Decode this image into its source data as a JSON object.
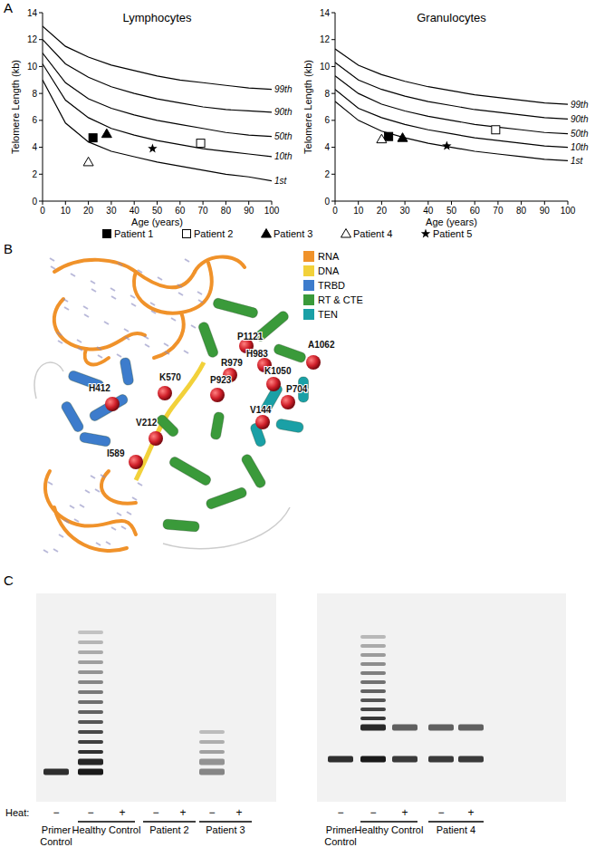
{
  "panel_labels": [
    "A",
    "B",
    "C"
  ],
  "chart_data": [
    {
      "type": "line",
      "title": "Lymphocytes",
      "x_label": "Age (years)",
      "y_label": "Telomere Length (kb)",
      "xlim": [
        0,
        100
      ],
      "ylim": [
        0,
        14
      ],
      "xticks": [
        0,
        10,
        20,
        30,
        40,
        50,
        60,
        70,
        80,
        90,
        100
      ],
      "yticks": [
        0,
        2,
        4,
        6,
        8,
        10,
        12,
        14
      ],
      "x": [
        0,
        10,
        20,
        30,
        40,
        50,
        60,
        70,
        80,
        90,
        100
      ],
      "series": [
        {
          "type": "line",
          "name": "99th",
          "color": "#000000",
          "values": [
            13.0,
            11.5,
            10.7,
            10.1,
            9.7,
            9.3,
            9.0,
            8.8,
            8.6,
            8.4,
            8.3
          ]
        },
        {
          "type": "line",
          "name": "90th",
          "color": "#000000",
          "values": [
            12.0,
            10.2,
            9.2,
            8.5,
            8.0,
            7.6,
            7.3,
            7.0,
            6.8,
            6.7,
            6.6
          ]
        },
        {
          "type": "line",
          "name": "50th",
          "color": "#000000",
          "values": [
            11.0,
            8.8,
            7.6,
            6.9,
            6.4,
            6.0,
            5.7,
            5.4,
            5.1,
            4.9,
            4.8
          ]
        },
        {
          "type": "line",
          "name": "10th",
          "color": "#000000",
          "values": [
            10.2,
            7.5,
            6.2,
            5.4,
            4.9,
            4.5,
            4.2,
            3.9,
            3.7,
            3.5,
            3.3
          ]
        },
        {
          "type": "line",
          "name": "1st",
          "color": "#000000",
          "values": [
            9.0,
            5.8,
            4.4,
            3.7,
            3.3,
            2.9,
            2.6,
            2.3,
            2.0,
            1.8,
            1.5
          ]
        },
        {
          "type": "scatter",
          "marker": "square",
          "color": "#000000",
          "x": [
            22
          ],
          "values": [
            4.7
          ]
        },
        {
          "type": "scatter",
          "marker": "square-open",
          "color": "#000000",
          "x": [
            69
          ],
          "values": [
            4.3
          ]
        },
        {
          "type": "scatter",
          "marker": "triangle",
          "color": "#000000",
          "x": [
            28
          ],
          "values": [
            5.0
          ]
        },
        {
          "type": "scatter",
          "marker": "triangle-open",
          "color": "#000000",
          "x": [
            20
          ],
          "values": [
            2.9
          ]
        },
        {
          "type": "scatter",
          "marker": "star",
          "color": "#000000",
          "x": [
            48
          ],
          "values": [
            3.9
          ]
        }
      ]
    },
    {
      "type": "line",
      "title": "Granulocytes",
      "x_label": "Age (years)",
      "y_label": "Telomere Length (kb)",
      "xlim": [
        0,
        100
      ],
      "ylim": [
        0,
        14
      ],
      "xticks": [
        0,
        10,
        20,
        30,
        40,
        50,
        60,
        70,
        80,
        90,
        100
      ],
      "yticks": [
        0,
        2,
        4,
        6,
        8,
        10,
        12,
        14
      ],
      "x": [
        0,
        10,
        20,
        30,
        40,
        50,
        60,
        70,
        80,
        90,
        100
      ],
      "series": [
        {
          "type": "line",
          "name": "99th",
          "color": "#000000",
          "values": [
            11.3,
            10.1,
            9.4,
            8.9,
            8.5,
            8.2,
            7.9,
            7.7,
            7.5,
            7.3,
            7.2
          ]
        },
        {
          "type": "line",
          "name": "90th",
          "color": "#000000",
          "values": [
            10.3,
            9.0,
            8.3,
            7.8,
            7.4,
            7.1,
            6.8,
            6.6,
            6.4,
            6.2,
            6.1
          ]
        },
        {
          "type": "line",
          "name": "50th",
          "color": "#000000",
          "values": [
            9.3,
            8.0,
            7.2,
            6.7,
            6.3,
            6.0,
            5.7,
            5.5,
            5.3,
            5.1,
            5.0
          ]
        },
        {
          "type": "line",
          "name": "10th",
          "color": "#000000",
          "values": [
            8.3,
            6.9,
            6.2,
            5.7,
            5.3,
            5.0,
            4.7,
            4.5,
            4.3,
            4.1,
            4.0
          ]
        },
        {
          "type": "line",
          "name": "1st",
          "color": "#000000",
          "values": [
            7.4,
            6.0,
            5.2,
            4.7,
            4.3,
            4.0,
            3.7,
            3.5,
            3.3,
            3.1,
            3.0
          ]
        },
        {
          "type": "scatter",
          "marker": "square",
          "color": "#000000",
          "x": [
            23
          ],
          "values": [
            4.8
          ]
        },
        {
          "type": "scatter",
          "marker": "square-open",
          "color": "#000000",
          "x": [
            69
          ],
          "values": [
            5.3
          ]
        },
        {
          "type": "scatter",
          "marker": "triangle",
          "color": "#000000",
          "x": [
            29
          ],
          "values": [
            4.7
          ]
        },
        {
          "type": "scatter",
          "marker": "triangle-open",
          "color": "#000000",
          "x": [
            20
          ],
          "values": [
            4.6
          ]
        },
        {
          "type": "scatter",
          "marker": "star",
          "color": "#000000",
          "x": [
            48
          ],
          "values": [
            4.1
          ]
        }
      ]
    }
  ],
  "key": [
    {
      "label": "Patient 1",
      "marker": "square"
    },
    {
      "label": "Patient 2",
      "marker": "square-open"
    },
    {
      "label": "Patient 3",
      "marker": "triangle"
    },
    {
      "label": "Patient 4",
      "marker": "triangle-open"
    },
    {
      "label": "Patient 5",
      "marker": "star"
    }
  ],
  "structure": {
    "legend": [
      {
        "label": "RNA",
        "color": "#f0922a"
      },
      {
        "label": "DNA",
        "color": "#f2d13a"
      },
      {
        "label": "TRBD",
        "color": "#3d7ccc"
      },
      {
        "label": "RT & CTE",
        "color": "#3a9a3a"
      },
      {
        "label": "TEN",
        "color": "#1aa0a6"
      }
    ],
    "residues": [
      "H412",
      "V212",
      "I589",
      "K570",
      "P923",
      "R979",
      "H983",
      "K1050",
      "P1121",
      "A1062",
      "P704",
      "V144"
    ]
  },
  "gel": {
    "heat_label": "Heat:",
    "gels": [
      {
        "lanes": [
          {
            "heat": "−",
            "bands": 1,
            "intensity": 0.9
          },
          {
            "heat": "−",
            "bands": 15,
            "intensity": 1
          },
          {
            "heat": "+",
            "bands": 0,
            "intensity": 0
          },
          {
            "heat": "−",
            "bands": 0,
            "intensity": 0
          },
          {
            "heat": "+",
            "bands": 0,
            "intensity": 0
          },
          {
            "heat": "−",
            "bands": 5,
            "intensity": 0.5
          },
          {
            "heat": "+",
            "bands": 0,
            "intensity": 0
          }
        ],
        "groups": [
          {
            "label": [
              "Primer",
              "Control"
            ],
            "lanes": [
              0
            ]
          },
          {
            "label": [
              "Healthy Control"
            ],
            "lanes": [
              1,
              2
            ]
          },
          {
            "label": [
              "Patient 2"
            ],
            "lanes": [
              3,
              4
            ]
          },
          {
            "label": [
              "Patient 3"
            ],
            "lanes": [
              5,
              6
            ]
          }
        ]
      },
      {
        "lanes": [
          {
            "heat": "−",
            "bands": 1,
            "intensity": 0.9
          },
          {
            "heat": "−",
            "bands": 12,
            "intensity": 1
          },
          {
            "heat": "+",
            "bands": 2,
            "intensity": 0.85
          },
          {
            "heat": "−",
            "bands": 2,
            "intensity": 0.85
          },
          {
            "heat": "+",
            "bands": 2,
            "intensity": 0.85
          }
        ],
        "groups": [
          {
            "label": [
              "Primer",
              "Control"
            ],
            "lanes": [
              0
            ]
          },
          {
            "label": [
              "Healthy Control"
            ],
            "lanes": [
              1,
              2
            ]
          },
          {
            "label": [
              "Patient 4"
            ],
            "lanes": [
              3,
              4
            ]
          }
        ]
      }
    ]
  }
}
